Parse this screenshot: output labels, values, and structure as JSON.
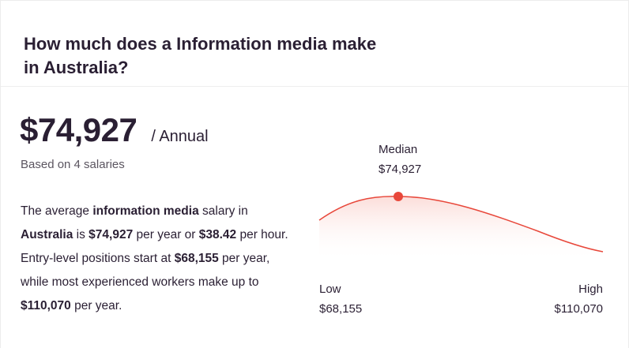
{
  "title": "How much does a Information media make in Australia?",
  "salary": {
    "amount": "$74,927",
    "period": "/ Annual",
    "based_on": "Based on 4 salaries"
  },
  "description": {
    "p1": "The average ",
    "job": "information media",
    "p2": " salary in ",
    "location": "Australia",
    "p3": " is ",
    "yearly": "$74,927",
    "p4": " per year or ",
    "hourly": "$38.42",
    "p5": " per hour. Entry-level positions start at ",
    "entry": "$68,155",
    "p6": " per year, while most experienced workers make up to ",
    "max": "$110,070",
    "p7": " per year."
  },
  "distribution": {
    "median_label": "Median",
    "median_value": "$74,927",
    "low_label": "Low",
    "low_value": "$68,155",
    "high_label": "High",
    "high_value": "$110,070",
    "accent_color": "#e8473a",
    "fill_color": "#fde8e6"
  }
}
